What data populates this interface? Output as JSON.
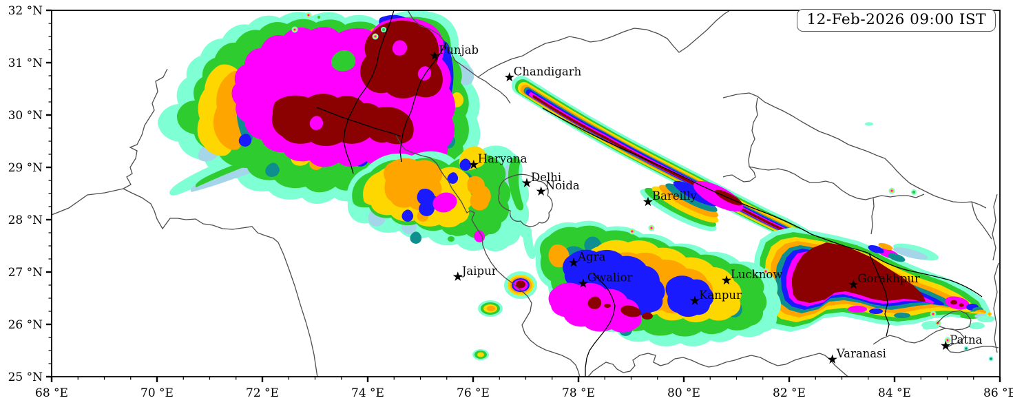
{
  "timestamp_box": {
    "text": "12-Feb-2026 09:00 IST"
  },
  "axes": {
    "x_label_suffix": " °E",
    "y_label_suffix": " °N",
    "x_ticks": [
      {
        "lon": 68,
        "label": "68 °E"
      },
      {
        "lon": 70,
        "label": "70 °E"
      },
      {
        "lon": 72,
        "label": "72 °E"
      },
      {
        "lon": 74,
        "label": "74 °E"
      },
      {
        "lon": 76,
        "label": "76 °E"
      },
      {
        "lon": 78,
        "label": "78 °E"
      },
      {
        "lon": 80,
        "label": "80 °E"
      },
      {
        "lon": 82,
        "label": "82 °E"
      },
      {
        "lon": 84,
        "label": "84 °E"
      },
      {
        "lon": 86,
        "label": "86 °E"
      }
    ],
    "y_ticks": [
      {
        "lat": 32,
        "label": "32 °N"
      },
      {
        "lat": 31,
        "label": "31 °N"
      },
      {
        "lat": 30,
        "label": "30 °N"
      },
      {
        "lat": 29,
        "label": "29 °N"
      },
      {
        "lat": 28,
        "label": "28 °N"
      },
      {
        "lat": 27,
        "label": "27 °N"
      },
      {
        "lat": 26,
        "label": "26 °N"
      },
      {
        "lat": 25,
        "label": "25 °N"
      }
    ],
    "lon_range": [
      68,
      86
    ],
    "lat_range": [
      25,
      32
    ],
    "x_minor_step": 0.5,
    "y_minor_step": 0.25
  },
  "cities": [
    {
      "name": "Punjab",
      "lon": 75.27,
      "lat": 31.13
    },
    {
      "name": "Chandigarh",
      "lon": 76.69,
      "lat": 30.72
    },
    {
      "name": "Haryana",
      "lon": 76.01,
      "lat": 29.05
    },
    {
      "name": "Delhi",
      "lon": 77.02,
      "lat": 28.7
    },
    {
      "name": "Noida",
      "lon": 77.29,
      "lat": 28.54
    },
    {
      "name": "Bareilly",
      "lon": 79.32,
      "lat": 28.34
    },
    {
      "name": "Jaipur",
      "lon": 75.71,
      "lat": 26.91
    },
    {
      "name": "Agra",
      "lon": 77.91,
      "lat": 27.18
    },
    {
      "name": "Gwalior",
      "lon": 78.09,
      "lat": 26.78
    },
    {
      "name": "Lucknow",
      "lon": 80.81,
      "lat": 26.84
    },
    {
      "name": "Kanpur",
      "lon": 80.21,
      "lat": 26.45
    },
    {
      "name": "Gorakhpur",
      "lon": 83.22,
      "lat": 26.76
    },
    {
      "name": "Varanasi",
      "lon": 82.82,
      "lat": 25.33
    },
    {
      "name": "Patna",
      "lon": 84.97,
      "lat": 25.59
    }
  ],
  "palette": {
    "aquamarine": "#7FFFD4",
    "lightblue": "#A5D5E8",
    "green": "#2FCC2F",
    "teal": "#0E8E8E",
    "yellow": "#FFD700",
    "orange": "#FFA500",
    "blue": "#1A1AFF",
    "magenta": "#FF00FF",
    "darkred": "#8B0000"
  },
  "border_colors": {
    "state": "#4d4d4d",
    "country": "#000000"
  },
  "frame_color": "#000000"
}
